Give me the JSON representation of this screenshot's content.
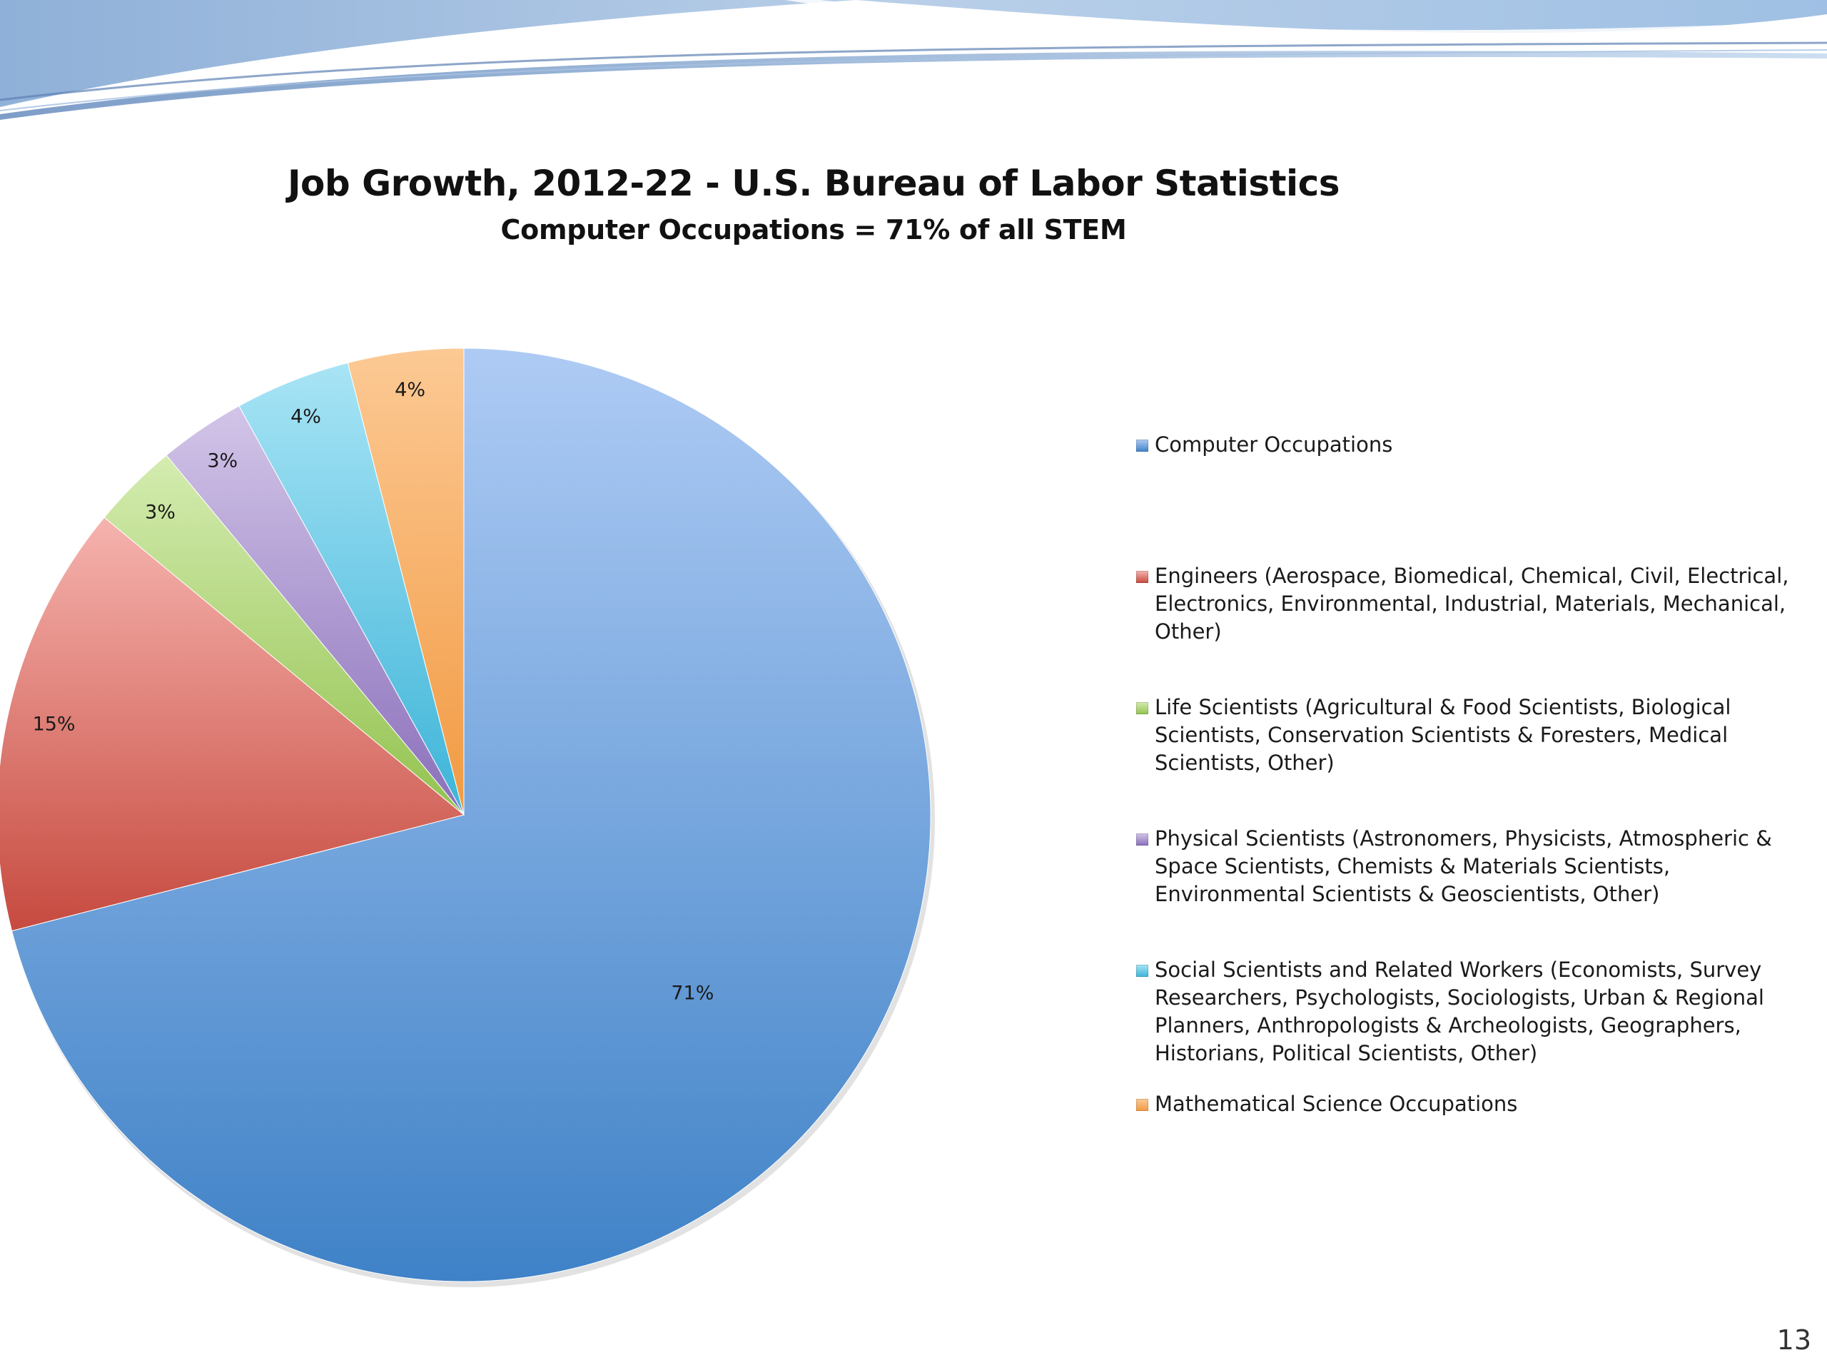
{
  "slide": {
    "page_number": "13"
  },
  "chart_data": {
    "type": "pie",
    "title": "Job Growth, 2012-22 - U.S. Bureau of Labor Statistics",
    "subtitle": "Computer Occupations = 71% of all STEM",
    "legend_position": "right",
    "start_angle": "12 o'clock, clockwise",
    "slices": [
      {
        "name": "Computer Occupations",
        "value": 71,
        "label": "71%",
        "color_top": "#aecbf4",
        "color_bottom": "#3f82c7"
      },
      {
        "name": "Engineers (Aerospace, Biomedical, Chemical, Civil, Electrical, Electronics, Environmental, Industrial, Materials, Mechanical, Other)",
        "value": 15,
        "label": "15%",
        "color_top": "#f6b3ae",
        "color_bottom": "#c64a3f"
      },
      {
        "name": "Life Scientists (Agricultural & Food Scientists, Biological Scientists, Conservation Scientists & Foresters, Medical Scientists, Other)",
        "value": 3,
        "label": "3%",
        "color_top": "#d4ecb0",
        "color_bottom": "#93c24f"
      },
      {
        "name": "Physical Scientists (Astronomers, Physicists, Atmospheric & Space Scientists, Chemists & Materials Scientists, Environmental Scientists & Geoscientists, Other)",
        "value": 3,
        "label": "3%",
        "color_top": "#d2c5e8",
        "color_bottom": "#8a6fba"
      },
      {
        "name": "Social Scientists and Related Workers (Economists, Survey Researchers, Psychologists, Sociologists, Urban & Regional Planners, Anthropologists & Archeologists, Geographers, Historians, Political Scientists, Other)",
        "value": 4,
        "label": "4%",
        "color_top": "#a8e4f5",
        "color_bottom": "#3db4d8"
      },
      {
        "name": "Mathematical Science Occupations",
        "value": 4,
        "label": "4%",
        "color_top": "#fcc994",
        "color_bottom": "#f29a42"
      }
    ]
  }
}
